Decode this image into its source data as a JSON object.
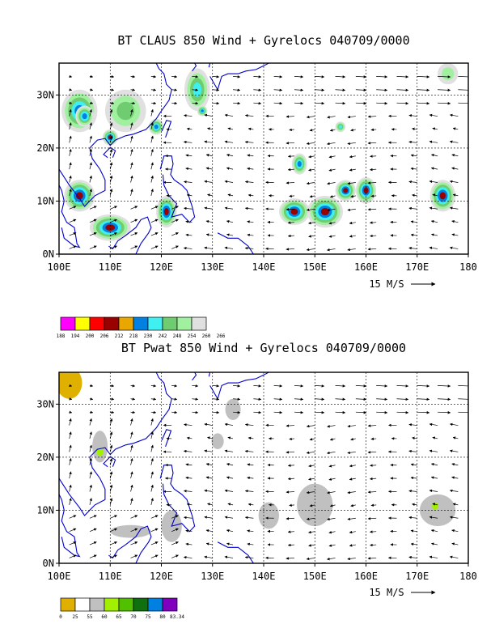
{
  "chart_data": [
    {
      "type": "heatmap",
      "title": "BT CLAUS 850 Wind + Gyrelocs 040709/0000",
      "x_ticks": [
        "100E",
        "110E",
        "120E",
        "130E",
        "140E",
        "150E",
        "160E",
        "170E",
        "180"
      ],
      "y_ticks": [
        "0N",
        "10N",
        "20N",
        "30N"
      ],
      "xlim": [
        100,
        180
      ],
      "ylim": [
        0,
        36
      ],
      "grid": true,
      "vector_reference": "15 M/S",
      "colorbar": {
        "labels": [
          "188",
          "194",
          "200",
          "206",
          "212",
          "218",
          "230",
          "242",
          "248",
          "254",
          "260",
          "266"
        ],
        "colors": [
          "#ff00ff",
          "#ffff00",
          "#ff0000",
          "#990000",
          "#e8a800",
          "#0080e0",
          "#40f0f0",
          "#70cc70",
          "#a0f0a0",
          "#e0e0e0"
        ]
      },
      "shaded_regions": [
        {
          "lon": 104,
          "lat": 27,
          "rx": 3.5,
          "ry": 4,
          "level": 5
        },
        {
          "lon": 105,
          "lat": 26,
          "rx": 1.8,
          "ry": 2,
          "level": 4
        },
        {
          "lon": 113,
          "lat": 27,
          "rx": 4,
          "ry": 4,
          "level": 7
        },
        {
          "lon": 110,
          "lat": 22,
          "rx": 1.5,
          "ry": 1.5,
          "level": 3
        },
        {
          "lon": 119,
          "lat": 24,
          "rx": 1.5,
          "ry": 1.5,
          "level": 5
        },
        {
          "lon": 127,
          "lat": 31,
          "rx": 2.5,
          "ry": 4,
          "level": 6
        },
        {
          "lon": 128,
          "lat": 27,
          "rx": 1,
          "ry": 1,
          "level": 5
        },
        {
          "lon": 104,
          "lat": 11,
          "rx": 3,
          "ry": 3,
          "level": 3
        },
        {
          "lon": 110,
          "lat": 5,
          "rx": 4,
          "ry": 2.5,
          "level": 3
        },
        {
          "lon": 121,
          "lat": 8,
          "rx": 2,
          "ry": 3,
          "level": 3
        },
        {
          "lon": 146,
          "lat": 8,
          "rx": 3,
          "ry": 2.5,
          "level": 3
        },
        {
          "lon": 152,
          "lat": 8,
          "rx": 3.5,
          "ry": 3,
          "level": 3
        },
        {
          "lon": 147,
          "lat": 17,
          "rx": 1.5,
          "ry": 2,
          "level": 5
        },
        {
          "lon": 156,
          "lat": 12,
          "rx": 2,
          "ry": 2,
          "level": 3
        },
        {
          "lon": 160,
          "lat": 12,
          "rx": 2,
          "ry": 2.5,
          "level": 3
        },
        {
          "lon": 175,
          "lat": 11,
          "rx": 2.5,
          "ry": 3,
          "level": 3
        },
        {
          "lon": 155,
          "lat": 24,
          "rx": 1,
          "ry": 1,
          "level": 6
        },
        {
          "lon": 176,
          "lat": 34,
          "rx": 2,
          "ry": 2,
          "level": 8
        }
      ]
    },
    {
      "type": "heatmap",
      "title": "BT Pwat 850 Wind + Gyrelocs 040709/0000",
      "x_ticks": [
        "100E",
        "110E",
        "120E",
        "130E",
        "140E",
        "150E",
        "160E",
        "170E",
        "180"
      ],
      "y_ticks": [
        "0N",
        "10N",
        "20N",
        "30N"
      ],
      "xlim": [
        100,
        180
      ],
      "ylim": [
        0,
        36
      ],
      "grid": true,
      "vector_reference": "15 M/S",
      "colorbar": {
        "labels": [
          "0",
          "25",
          "55",
          "60",
          "65",
          "70",
          "75",
          "80",
          "83.34"
        ],
        "colors": [
          "#e0b000",
          "#ffffff",
          "#c0c0c0",
          "#a0f000",
          "#50c000",
          "#107010",
          "#0080e0",
          "#8000c0"
        ]
      },
      "shaded_regions": [
        {
          "lon": 102,
          "lat": 34,
          "rx": 2.5,
          "ry": 3,
          "level": 0
        },
        {
          "lon": 108,
          "lat": 22,
          "rx": 1.5,
          "ry": 3,
          "level": 2
        },
        {
          "lon": 108,
          "lat": 21,
          "rx": 0.6,
          "ry": 0.8,
          "level": 3
        },
        {
          "lon": 114,
          "lat": 6,
          "rx": 4,
          "ry": 1.2,
          "level": 2
        },
        {
          "lon": 122,
          "lat": 7,
          "rx": 2,
          "ry": 3,
          "level": 2
        },
        {
          "lon": 134,
          "lat": 29,
          "rx": 1.5,
          "ry": 2,
          "level": 2
        },
        {
          "lon": 131,
          "lat": 23,
          "rx": 1.2,
          "ry": 1.5,
          "level": 2
        },
        {
          "lon": 141,
          "lat": 9,
          "rx": 2,
          "ry": 2.5,
          "level": 2
        },
        {
          "lon": 150,
          "lat": 11,
          "rx": 3.5,
          "ry": 4,
          "level": 2
        },
        {
          "lon": 174,
          "lat": 10,
          "rx": 3.5,
          "ry": 3,
          "level": 2
        },
        {
          "lon": 173.5,
          "lat": 10.8,
          "rx": 0.6,
          "ry": 0.7,
          "level": 3
        }
      ]
    }
  ]
}
